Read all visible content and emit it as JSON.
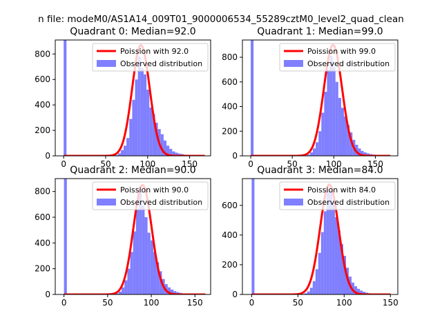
{
  "figure": {
    "suptitle": "n file: modeM0/AS1A14_009T01_9000006534_55289cztM0_level2_quad_clean"
  },
  "colors": {
    "fit_line": "#ff0000",
    "hist_bar": "#7f7fff",
    "axis": "#000000",
    "background": "#ffffff"
  },
  "chart_data": [
    {
      "type": "bar",
      "title": "Quadrant 0: Median=92.0",
      "xlim": [
        -10,
        175
      ],
      "ylim": [
        0,
        910
      ],
      "xticks": [
        0,
        50,
        100,
        150
      ],
      "yticks": [
        0,
        200,
        400,
        600,
        800
      ],
      "legend": [
        "Poission with 92.0",
        "Observed distribution"
      ],
      "legend_position": "upper right",
      "median": 92,
      "fit_peak": 870,
      "fit_sigma": 10.5,
      "fit_range": [
        0,
        168
      ],
      "hist": {
        "bin_width": 3.4,
        "x": [
          0,
          57.8,
          61.2,
          64.6,
          68,
          71.4,
          74.8,
          78.2,
          81.6,
          85,
          88.4,
          91.8,
          95.2,
          98.6,
          102,
          105.4,
          108.8,
          112.2,
          115.6,
          119,
          122.4,
          125.8,
          129.2,
          132.6,
          136,
          139.4,
          142.8,
          146.2,
          149.6,
          153,
          156.4,
          159.8
        ],
        "values": [
          910,
          3,
          6,
          20,
          45,
          80,
          140,
          290,
          440,
          600,
          780,
          690,
          640,
          520,
          380,
          330,
          260,
          210,
          170,
          120,
          80,
          55,
          35,
          25,
          18,
          14,
          9,
          6,
          4,
          3,
          2,
          1
        ]
      }
    },
    {
      "type": "bar",
      "title": "Quadrant 1: Median=99.0",
      "xlim": [
        -10,
        177
      ],
      "ylim": [
        0,
        940
      ],
      "xticks": [
        0,
        50,
        100,
        150
      ],
      "yticks": [
        0,
        200,
        400,
        600,
        800
      ],
      "legend": [
        "Poission with 99.0",
        "Observed distribution"
      ],
      "legend_position": "upper right",
      "median": 99,
      "fit_peak": 900,
      "fit_sigma": 11,
      "fit_range": [
        0,
        168
      ],
      "hist": {
        "bin_width": 3.4,
        "x": [
          0,
          64.6,
          68,
          71.4,
          74.8,
          78.2,
          81.6,
          85,
          88.4,
          91.8,
          95.2,
          98.6,
          102,
          105.4,
          108.8,
          112.2,
          115.6,
          119,
          122.4,
          125.8,
          129.2,
          132.6,
          136,
          139.4,
          142.8,
          146.2,
          149.6,
          153,
          156.4,
          159.8,
          163.2
        ],
        "values": [
          940,
          3,
          10,
          28,
          60,
          110,
          200,
          350,
          520,
          700,
          810,
          720,
          600,
          470,
          390,
          320,
          250,
          190,
          130,
          90,
          60,
          40,
          28,
          20,
          14,
          10,
          7,
          5,
          3,
          2,
          1
        ]
      }
    },
    {
      "type": "bar",
      "title": "Quadrant 2: Median=90.0",
      "xlim": [
        -10,
        168
      ],
      "ylim": [
        0,
        900
      ],
      "xticks": [
        0,
        50,
        100,
        150
      ],
      "yticks": [
        0,
        200,
        400,
        600,
        800
      ],
      "legend": [
        "Poission with 90.0",
        "Observed distribution"
      ],
      "legend_position": "upper right",
      "median": 90,
      "fit_peak": 850,
      "fit_sigma": 10.5,
      "fit_range": [
        0,
        162
      ],
      "hist": {
        "bin_width": 3.3,
        "x": [
          0,
          56.1,
          59.4,
          62.7,
          66,
          69.3,
          72.6,
          75.9,
          79.2,
          82.5,
          85.8,
          89.1,
          92.4,
          95.7,
          99,
          102.3,
          105.6,
          108.9,
          112.2,
          115.5,
          118.8,
          122.1,
          125.4,
          128.7,
          132,
          135.3,
          138.6,
          141.9,
          145.2,
          148.5
        ],
        "values": [
          900,
          3,
          8,
          22,
          55,
          110,
          200,
          330,
          490,
          660,
          800,
          690,
          600,
          480,
          420,
          330,
          250,
          180,
          120,
          80,
          55,
          38,
          26,
          18,
          12,
          8,
          5,
          3,
          2,
          1
        ]
      }
    },
    {
      "type": "bar",
      "title": "Quadrant 3: Median=84.0",
      "xlim": [
        -10,
        158
      ],
      "ylim": [
        0,
        780
      ],
      "xticks": [
        0,
        50,
        100,
        150
      ],
      "yticks": [
        0,
        200,
        400,
        600
      ],
      "legend": [
        "Poission with 84.0",
        "Observed distribution"
      ],
      "legend_position": "upper right",
      "median": 84,
      "fit_peak": 740,
      "fit_sigma": 10,
      "fit_range": [
        0,
        150
      ],
      "hist": {
        "bin_width": 3,
        "x": [
          0,
          54,
          57,
          60,
          63,
          66,
          69,
          72,
          75,
          78,
          81,
          84,
          87,
          90,
          93,
          96,
          99,
          102,
          105,
          108,
          111,
          114,
          117,
          120,
          123,
          126,
          129,
          132,
          135,
          138
        ],
        "values": [
          780,
          3,
          8,
          20,
          45,
          90,
          170,
          280,
          420,
          560,
          690,
          700,
          620,
          520,
          430,
          340,
          260,
          180,
          120,
          80,
          55,
          38,
          26,
          18,
          12,
          8,
          5,
          3,
          2,
          1
        ]
      }
    }
  ]
}
